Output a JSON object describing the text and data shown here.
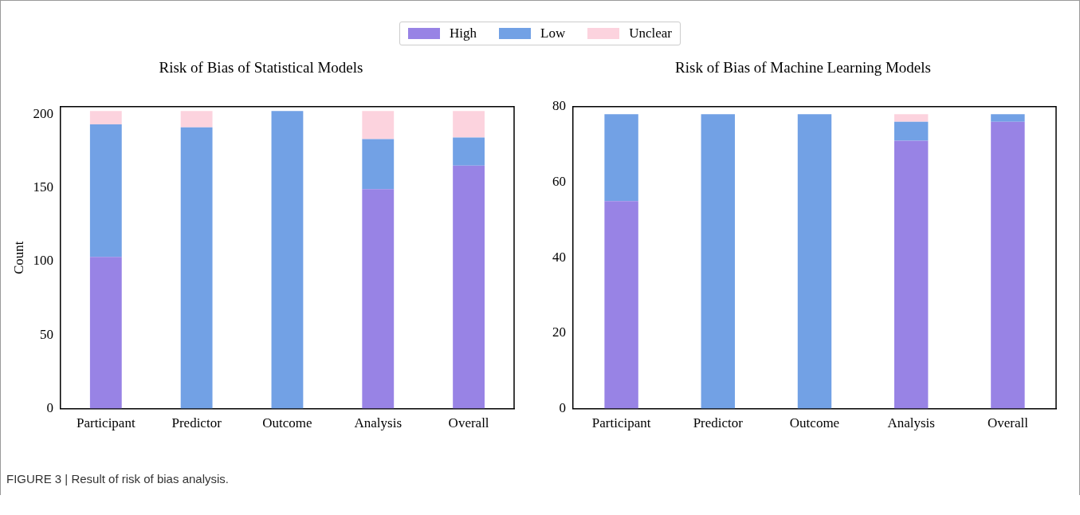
{
  "chart_data": [
    {
      "type": "bar",
      "title": "Risk of Bias of Statistical Models",
      "ylabel": "Count",
      "categories": [
        "Participant",
        "Predictor",
        "Outcome",
        "Analysis",
        "Overall"
      ],
      "stacked": true,
      "legend": "top",
      "ylim": [
        0,
        205
      ],
      "yticks": [
        0,
        50,
        100,
        150,
        200
      ],
      "annotations": [
        "FIGURE 3 | Result of risk of bias analysis."
      ],
      "series": [
        {
          "name": "High",
          "color": "#9883e5",
          "values": [
            103,
            0,
            0,
            149,
            165
          ]
        },
        {
          "name": "Low",
          "color": "#72a1e5",
          "values": [
            90,
            191,
            202,
            34,
            19
          ]
        },
        {
          "name": "Unclear",
          "color": "#fcd3de",
          "values": [
            9,
            11,
            0,
            19,
            18
          ]
        }
      ]
    },
    {
      "type": "bar",
      "title": "Risk of Bias of Machine Learning Models",
      "categories": [
        "Participant",
        "Predictor",
        "Outcome",
        "Analysis",
        "Overall"
      ],
      "stacked": true,
      "ylim": [
        0,
        80
      ],
      "yticks": [
        0,
        20,
        40,
        60,
        80
      ],
      "series": [
        {
          "color": "#9883e5",
          "values": [
            55,
            0,
            0,
            71,
            76
          ]
        },
        {
          "color": "#72a1e5",
          "values": [
            23,
            78,
            78,
            5,
            2
          ]
        },
        {
          "color": "#fcd3de",
          "values": [
            0,
            0,
            0,
            2,
            0
          ]
        }
      ]
    }
  ]
}
